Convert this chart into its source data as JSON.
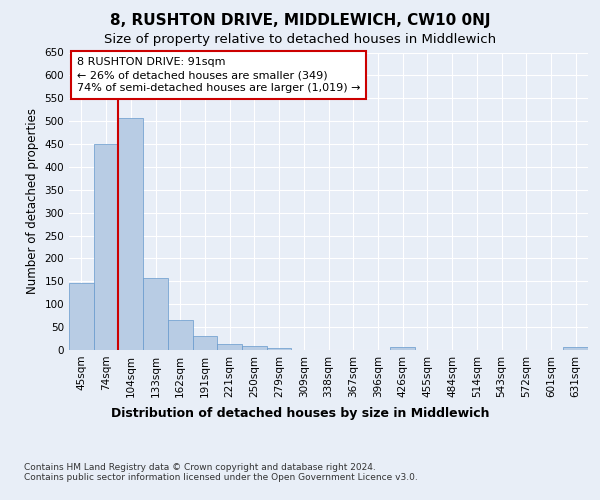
{
  "title": "8, RUSHTON DRIVE, MIDDLEWICH, CW10 0NJ",
  "subtitle": "Size of property relative to detached houses in Middlewich",
  "xlabel": "Distribution of detached houses by size in Middlewich",
  "ylabel": "Number of detached properties",
  "categories": [
    "45sqm",
    "74sqm",
    "104sqm",
    "133sqm",
    "162sqm",
    "191sqm",
    "221sqm",
    "250sqm",
    "279sqm",
    "309sqm",
    "338sqm",
    "367sqm",
    "396sqm",
    "426sqm",
    "455sqm",
    "484sqm",
    "514sqm",
    "543sqm",
    "572sqm",
    "601sqm",
    "631sqm"
  ],
  "values": [
    147,
    450,
    507,
    157,
    65,
    30,
    13,
    8,
    5,
    0,
    0,
    0,
    0,
    6,
    0,
    0,
    0,
    0,
    0,
    0,
    6
  ],
  "bar_color": "#b8cce4",
  "bar_edge_color": "#6699cc",
  "annotation_line1": "8 RUSHTON DRIVE: 91sqm",
  "annotation_line2": "← 26% of detached houses are smaller (349)",
  "annotation_line3": "74% of semi-detached houses are larger (1,019) →",
  "annotation_box_color": "#ffffff",
  "annotation_box_edge_color": "#cc0000",
  "vline_x": 1.5,
  "vline_color": "#cc0000",
  "ylim": [
    0,
    650
  ],
  "yticks": [
    0,
    50,
    100,
    150,
    200,
    250,
    300,
    350,
    400,
    450,
    500,
    550,
    600,
    650
  ],
  "background_color": "#e8eef7",
  "plot_bg_color": "#e8eef7",
  "footer_text": "Contains HM Land Registry data © Crown copyright and database right 2024.\nContains public sector information licensed under the Open Government Licence v3.0.",
  "title_fontsize": 11,
  "subtitle_fontsize": 9.5,
  "xlabel_fontsize": 9,
  "ylabel_fontsize": 8.5,
  "tick_fontsize": 7.5,
  "annotation_fontsize": 8,
  "footer_fontsize": 6.5
}
